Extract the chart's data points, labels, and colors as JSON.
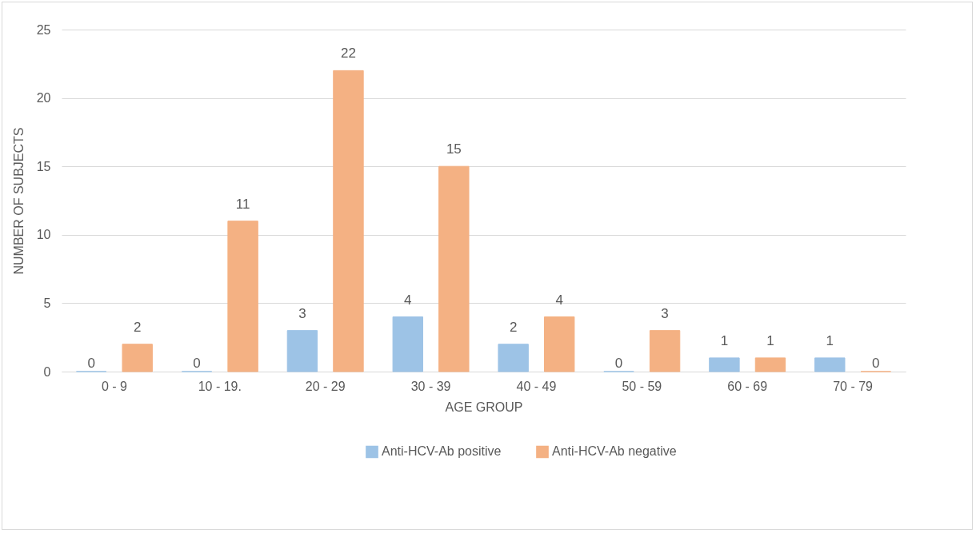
{
  "chart_data": {
    "type": "bar",
    "xlabel": "AGE GROUP",
    "ylabel": "NUMBER OF SUBJECTS",
    "categories": [
      "0 - 9",
      "10 - 19.",
      "20 - 29",
      "30 - 39",
      "40 - 49",
      "50 - 59",
      "60 - 69",
      "70 - 79"
    ],
    "series": [
      {
        "name": "Anti-HCV-Ab positive",
        "color": "#9dc3e6",
        "values": [
          0,
          0,
          3,
          4,
          2,
          0,
          1,
          1
        ]
      },
      {
        "name": "Anti-HCV-Ab negative",
        "color": "#f4b183",
        "values": [
          2,
          11,
          22,
          15,
          4,
          3,
          1,
          0
        ]
      }
    ],
    "ylim": [
      0,
      25
    ],
    "yticks": [
      0,
      5,
      10,
      15,
      20,
      25
    ],
    "grid": "y",
    "legend": "bottom",
    "data_labels": true
  }
}
